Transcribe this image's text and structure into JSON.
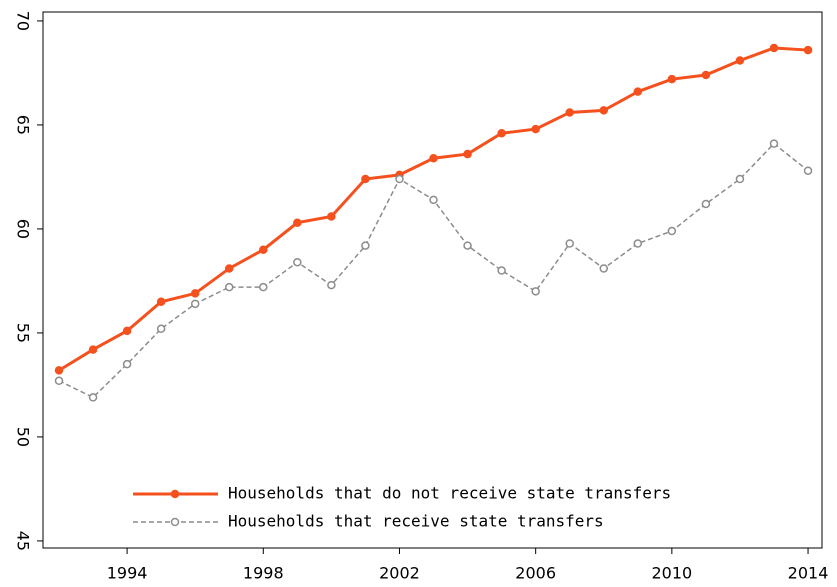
{
  "chart_data": {
    "type": "line",
    "x": [
      1992,
      1993,
      1994,
      1995,
      1996,
      1997,
      1998,
      1999,
      2000,
      2001,
      2002,
      2003,
      2004,
      2005,
      2006,
      2007,
      2008,
      2009,
      2010,
      2011,
      2012,
      2013,
      2014
    ],
    "series": [
      {
        "name": "Households that do not receive state transfers",
        "color": "#f4511e",
        "values": [
          53.2,
          54.2,
          55.1,
          56.5,
          56.9,
          58.1,
          59.0,
          60.3,
          60.6,
          62.4,
          62.6,
          63.4,
          63.6,
          64.6,
          64.8,
          65.6,
          65.7,
          66.6,
          67.2,
          67.4,
          68.1,
          68.7,
          68.6
        ]
      },
      {
        "name": "Households that receive state transfers",
        "color": "#8c8c8c",
        "values": [
          52.7,
          51.9,
          53.5,
          55.2,
          56.4,
          57.2,
          57.2,
          58.4,
          57.3,
          59.2,
          62.4,
          61.4,
          59.2,
          58.0,
          57.0,
          59.3,
          58.1,
          59.3,
          59.9,
          61.2,
          62.4,
          64.1,
          62.8
        ]
      }
    ],
    "xlim": [
      1991.53,
      2014.41
    ],
    "xticks": [
      1994,
      1998,
      2002,
      2006,
      2010,
      2014
    ],
    "ylim": [
      44.66,
      70.43
    ],
    "yticks": [
      45,
      50,
      55,
      60,
      65,
      70
    ],
    "grid": false,
    "legend": "lower center"
  }
}
